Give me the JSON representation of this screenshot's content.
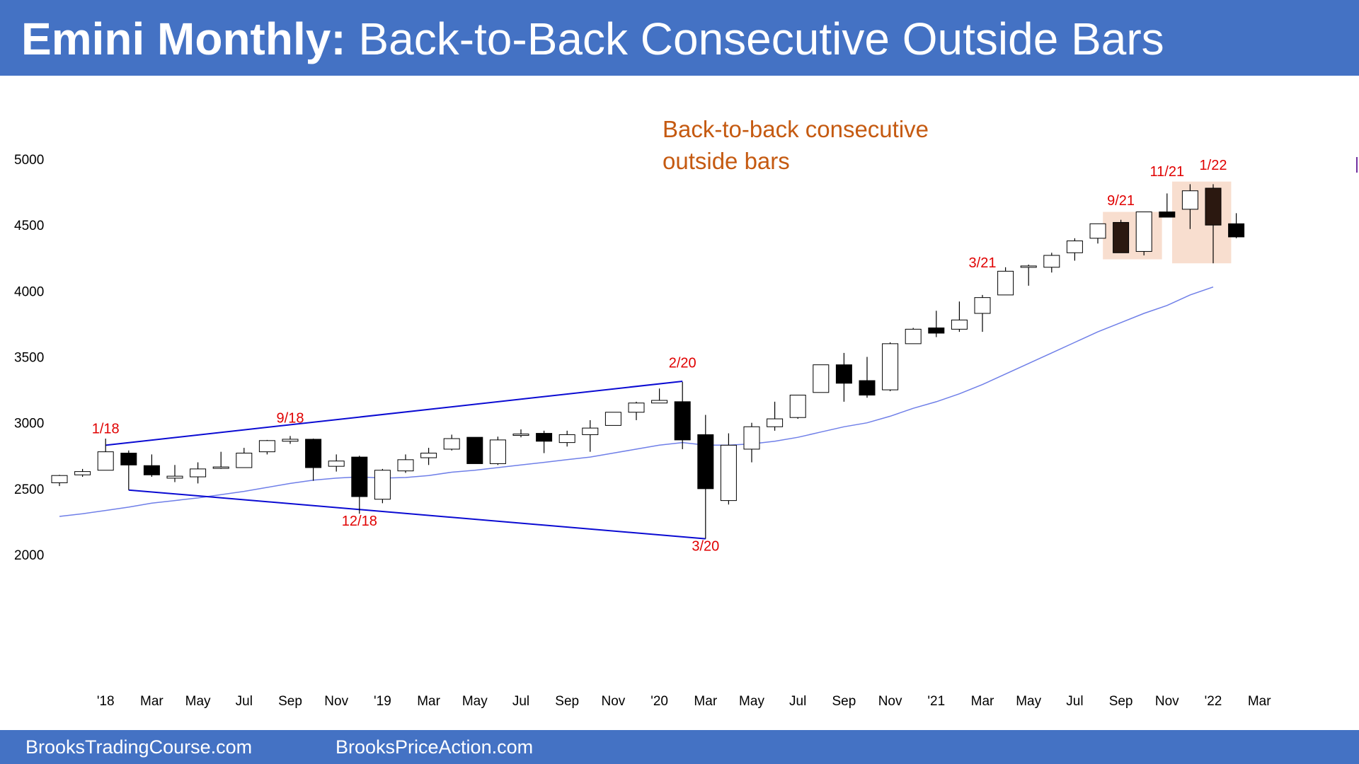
{
  "header": {
    "title_bold": "Emini Monthly:",
    "title_rest": "Back-to-Back Consecutive Outside Bars"
  },
  "footer": {
    "left": "BrooksTradingCourse.com",
    "right": "BrooksPriceAction.com"
  },
  "chart_data": {
    "type": "candlestick",
    "ylim": [
      1900,
      5200
    ],
    "yticks": [
      2000,
      2500,
      3000,
      3500,
      4000,
      4500,
      5000
    ],
    "xticks": [
      "'18",
      "Mar",
      "May",
      "Jul",
      "Sep",
      "Nov",
      "'19",
      "Mar",
      "May",
      "Jul",
      "Sep",
      "Nov",
      "'20",
      "Mar",
      "May",
      "Jul",
      "Sep",
      "Nov",
      "'21",
      "Mar",
      "May",
      "Jul",
      "Sep",
      "Nov",
      "'22",
      "Mar"
    ],
    "months": [
      "Nov 2017",
      "Dec 2017",
      "Jan 2018",
      "Feb 2018",
      "Mar 2018",
      "Apr 2018",
      "May 2018",
      "Jun 2018",
      "Jul 2018",
      "Aug 2018",
      "Sep 2018",
      "Oct 2018",
      "Nov 2018",
      "Dec 2018",
      "Jan 2019",
      "Feb 2019",
      "Mar 2019",
      "Apr 2019",
      "May 2019",
      "Jun 2019",
      "Jul 2019",
      "Aug 2019",
      "Sep 2019",
      "Oct 2019",
      "Nov 2019",
      "Dec 2019",
      "Jan 2020",
      "Feb 2020",
      "Mar 2020",
      "Apr 2020",
      "May 2020",
      "Jun 2020",
      "Jul 2020",
      "Aug 2020",
      "Sep 2020",
      "Oct 2020",
      "Nov 2020",
      "Dec 2020",
      "Jan 2021",
      "Feb 2021",
      "Mar 2021",
      "Apr 2021",
      "May 2021",
      "Jun 2021",
      "Jul 2021",
      "Aug 2021",
      "Sep 2021",
      "Oct 2021",
      "Nov 2021",
      "Dec 2021",
      "Jan 2022",
      "Feb 2022"
    ],
    "ohlc": [
      [
        2545,
        2605,
        2520,
        2600
      ],
      [
        2605,
        2650,
        2590,
        2630
      ],
      [
        2640,
        2880,
        2640,
        2780
      ],
      [
        2770,
        2790,
        2490,
        2680
      ],
      [
        2675,
        2760,
        2590,
        2605
      ],
      [
        2580,
        2680,
        2550,
        2595
      ],
      [
        2590,
        2700,
        2540,
        2650
      ],
      [
        2665,
        2780,
        2650,
        2665
      ],
      [
        2660,
        2810,
        2660,
        2770
      ],
      [
        2780,
        2870,
        2760,
        2865
      ],
      [
        2860,
        2900,
        2840,
        2875
      ],
      [
        2875,
        2880,
        2560,
        2660
      ],
      [
        2670,
        2760,
        2630,
        2710
      ],
      [
        2740,
        2750,
        2310,
        2440
      ],
      [
        2420,
        2650,
        2390,
        2640
      ],
      [
        2635,
        2760,
        2620,
        2720
      ],
      [
        2735,
        2810,
        2680,
        2770
      ],
      [
        2800,
        2910,
        2790,
        2880
      ],
      [
        2890,
        2890,
        2720,
        2690
      ],
      [
        2690,
        2895,
        2680,
        2870
      ],
      [
        2910,
        2950,
        2890,
        2915
      ],
      [
        2920,
        2940,
        2770,
        2860
      ],
      [
        2850,
        2940,
        2820,
        2910
      ],
      [
        2910,
        3020,
        2780,
        2960
      ],
      [
        2980,
        3080,
        2980,
        3080
      ],
      [
        3080,
        3160,
        3020,
        3150
      ],
      [
        3150,
        3260,
        3150,
        3170
      ],
      [
        3160,
        3310,
        2800,
        2870
      ],
      [
        2910,
        3060,
        2120,
        2500
      ],
      [
        2410,
        2920,
        2380,
        2830
      ],
      [
        2800,
        3000,
        2700,
        2970
      ],
      [
        2970,
        3160,
        2940,
        3030
      ],
      [
        3040,
        3210,
        3030,
        3210
      ],
      [
        3230,
        3440,
        3230,
        3440
      ],
      [
        3440,
        3530,
        3160,
        3300
      ],
      [
        3320,
        3500,
        3190,
        3210
      ],
      [
        3250,
        3610,
        3240,
        3600
      ],
      [
        3600,
        3720,
        3600,
        3710
      ],
      [
        3720,
        3850,
        3650,
        3680
      ],
      [
        3710,
        3920,
        3690,
        3780
      ],
      [
        3830,
        3970,
        3690,
        3950
      ],
      [
        3970,
        4180,
        3970,
        4150
      ],
      [
        4180,
        4200,
        4040,
        4190
      ],
      [
        4180,
        4290,
        4140,
        4270
      ],
      [
        4290,
        4400,
        4230,
        4380
      ],
      [
        4400,
        4510,
        4360,
        4510
      ],
      [
        4520,
        4540,
        4290,
        4290
      ],
      [
        4300,
        4600,
        4270,
        4600
      ],
      [
        4600,
        4740,
        4560,
        4560
      ],
      [
        4620,
        4810,
        4470,
        4760
      ],
      [
        4780,
        4810,
        4210,
        4500
      ],
      [
        4510,
        4590,
        4400,
        4410
      ]
    ],
    "moving_average": [
      [
        0,
        2290
      ],
      [
        1,
        2310
      ],
      [
        2,
        2335
      ],
      [
        3,
        2360
      ],
      [
        4,
        2390
      ],
      [
        5,
        2410
      ],
      [
        6,
        2430
      ],
      [
        7,
        2455
      ],
      [
        8,
        2480
      ],
      [
        9,
        2510
      ],
      [
        10,
        2540
      ],
      [
        11,
        2565
      ],
      [
        12,
        2580
      ],
      [
        13,
        2590
      ],
      [
        14,
        2580
      ],
      [
        15,
        2585
      ],
      [
        16,
        2600
      ],
      [
        17,
        2625
      ],
      [
        18,
        2640
      ],
      [
        19,
        2660
      ],
      [
        20,
        2680
      ],
      [
        21,
        2700
      ],
      [
        22,
        2720
      ],
      [
        23,
        2740
      ],
      [
        24,
        2770
      ],
      [
        25,
        2800
      ],
      [
        26,
        2830
      ],
      [
        27,
        2850
      ],
      [
        28,
        2830
      ],
      [
        29,
        2830
      ],
      [
        30,
        2840
      ],
      [
        31,
        2860
      ],
      [
        32,
        2890
      ],
      [
        33,
        2930
      ],
      [
        34,
        2970
      ],
      [
        35,
        3000
      ],
      [
        36,
        3050
      ],
      [
        37,
        3110
      ],
      [
        38,
        3160
      ],
      [
        39,
        3220
      ],
      [
        40,
        3290
      ],
      [
        41,
        3370
      ],
      [
        42,
        3450
      ],
      [
        43,
        3530
      ],
      [
        44,
        3610
      ],
      [
        45,
        3690
      ],
      [
        46,
        3760
      ],
      [
        47,
        3830
      ],
      [
        48,
        3890
      ],
      [
        49,
        3970
      ],
      [
        50,
        4030
      ]
    ],
    "wedge_lines": [
      {
        "from": [
          2,
          2830
        ],
        "to": [
          27,
          3315
        ]
      },
      {
        "from": [
          3,
          2490
        ],
        "to": [
          28,
          2120
        ]
      }
    ],
    "outside_bar_boxes": [
      {
        "from_index": 46,
        "to_index": 47,
        "low": 4240,
        "high": 4600
      },
      {
        "from_index": 49,
        "to_index": 50,
        "low": 4210,
        "high": 4830
      }
    ],
    "labels": [
      {
        "text": "1/18",
        "index": 2,
        "value": 2920
      },
      {
        "text": "9/18",
        "index": 10,
        "value": 3000
      },
      {
        "text": "12/18",
        "index": 13,
        "value": 2220
      },
      {
        "text": "2/20",
        "index": 27,
        "value": 3420
      },
      {
        "text": "3/20",
        "index": 28,
        "value": 2030
      },
      {
        "text": "3/21",
        "index": 40,
        "value": 4180
      },
      {
        "text": "9/21",
        "index": 46,
        "value": 4650
      },
      {
        "text": "11/21",
        "index": 48,
        "value": 4870
      },
      {
        "text": "1/22",
        "index": 50,
        "value": 4920
      }
    ],
    "annotation": [
      "Back-to-back consecutive",
      "outside bars"
    ]
  }
}
